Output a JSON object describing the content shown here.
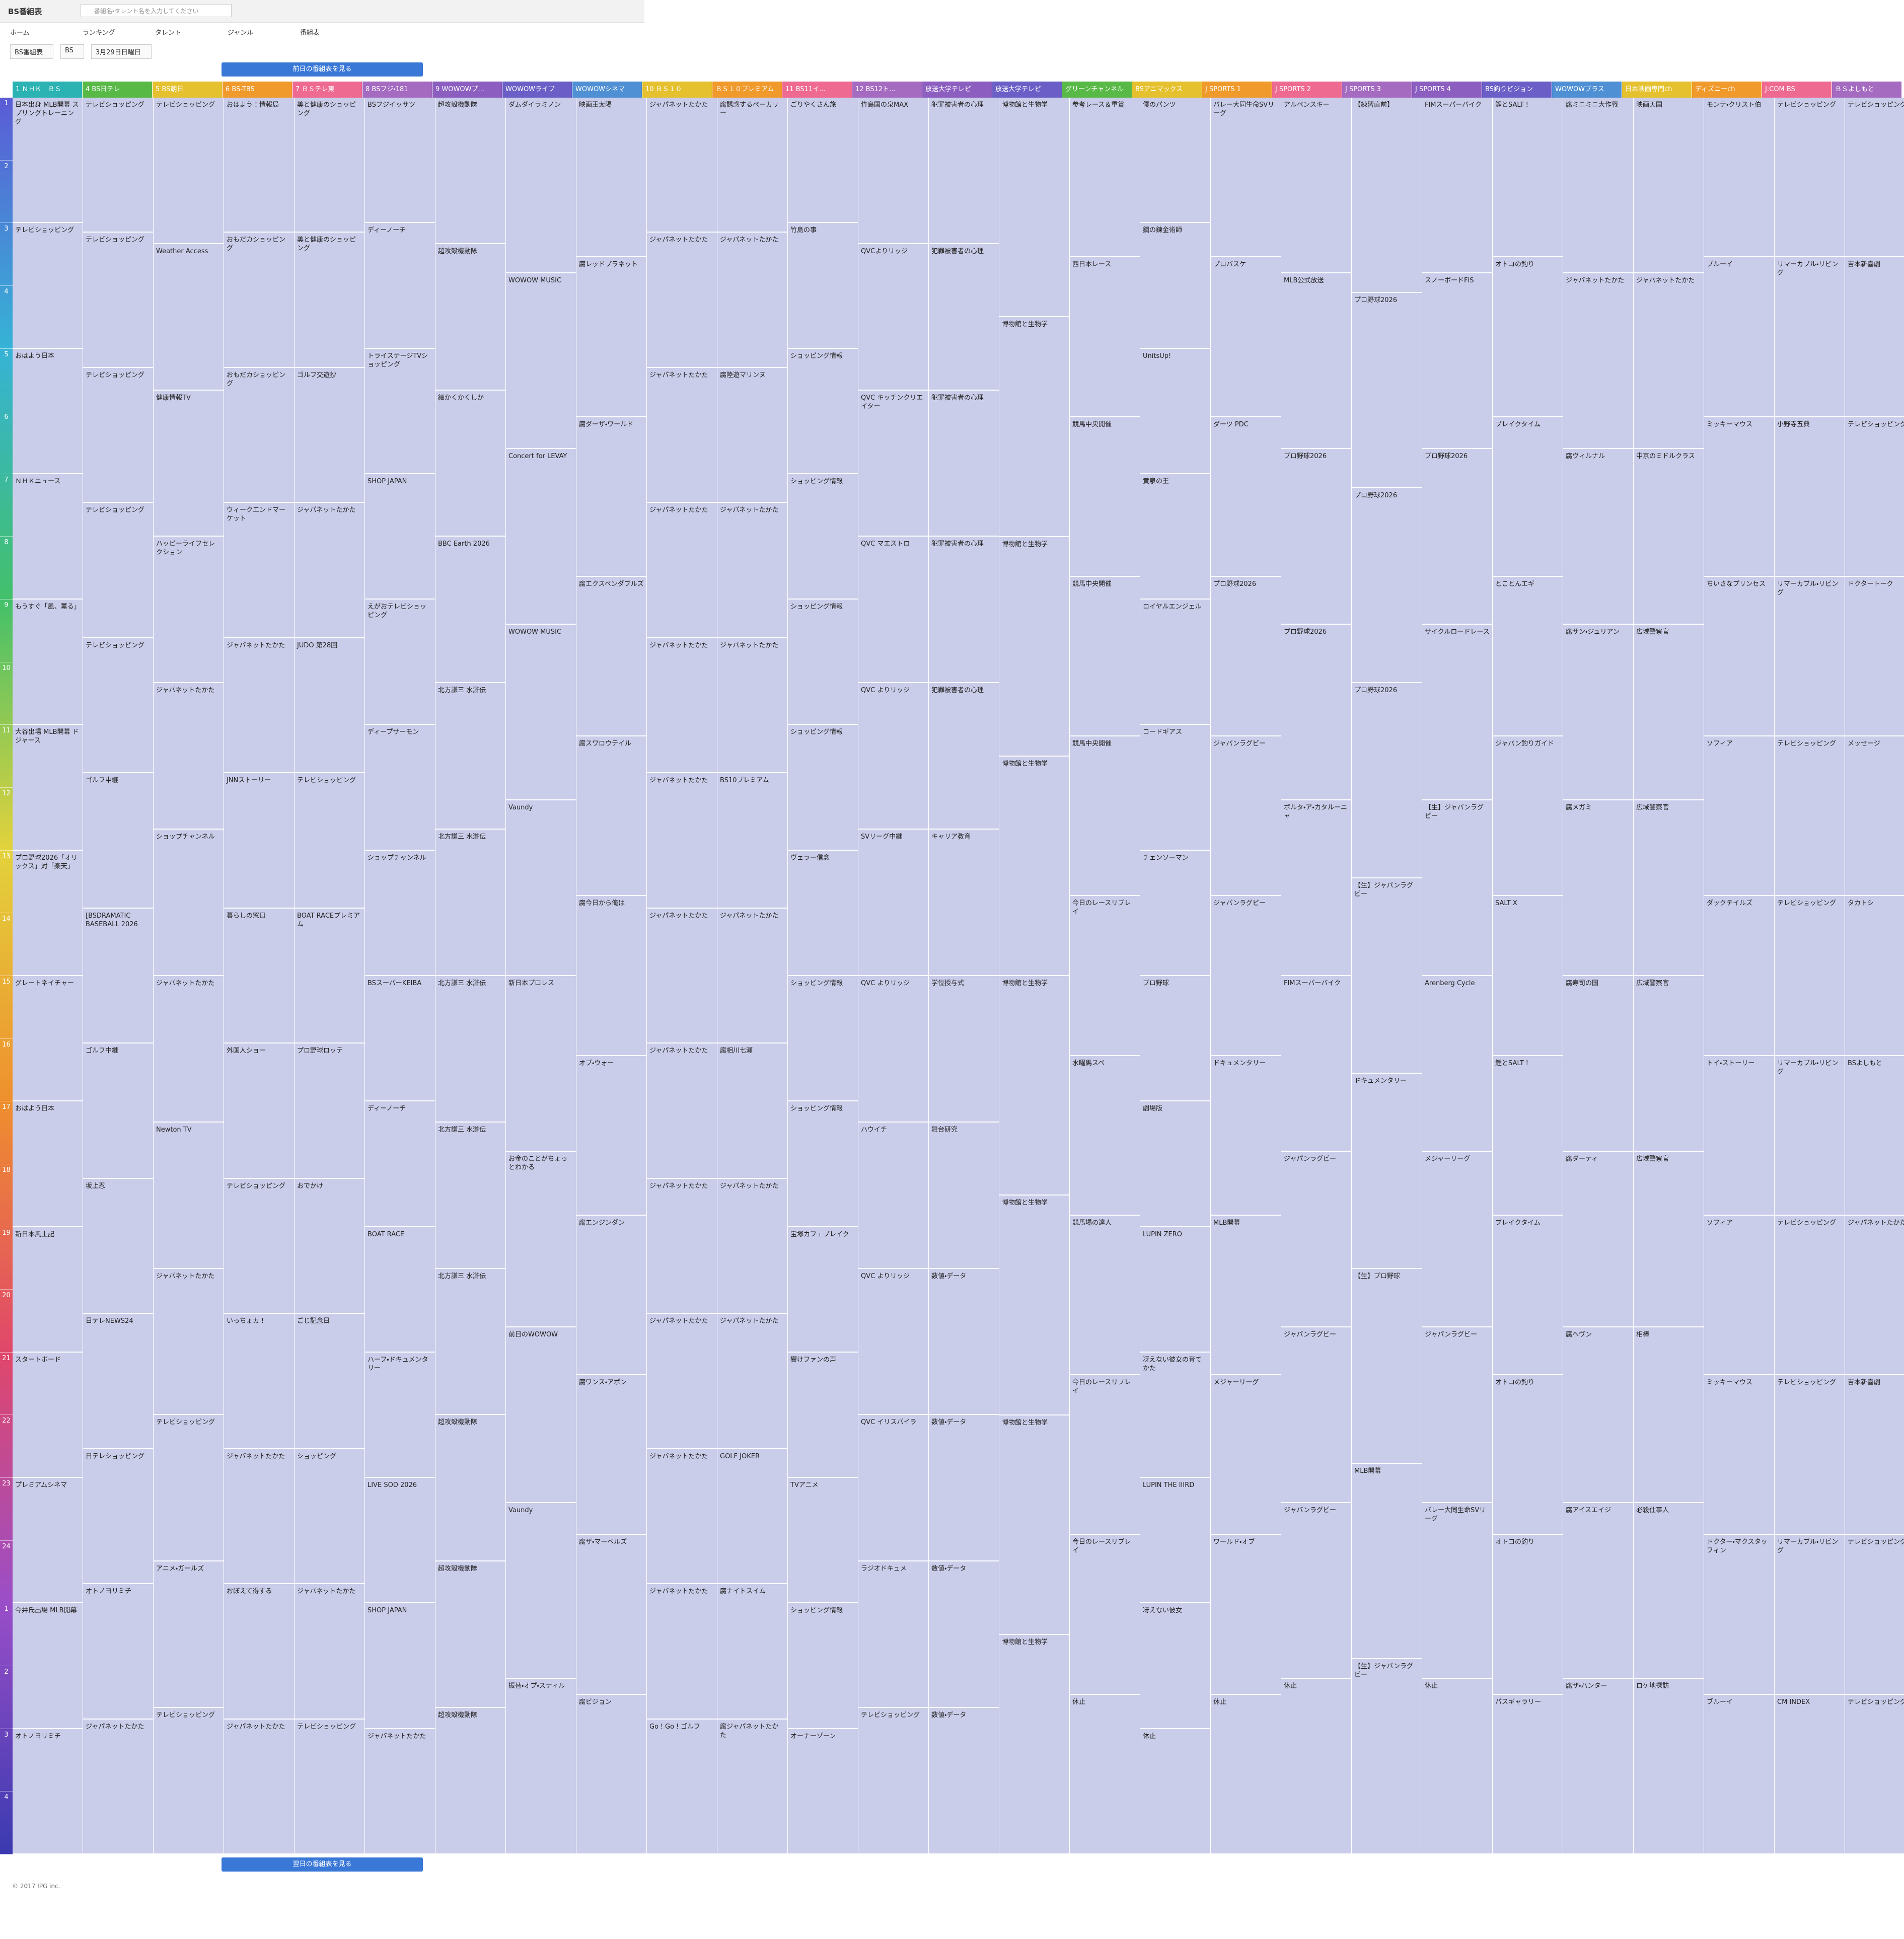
{
  "header": {
    "logo": "BS番組表",
    "search_placeholder": "番組名・タレント名を入力してください"
  },
  "nav": [
    "ホーム",
    "ランキング",
    "タレント",
    "ジャンル",
    "番組表"
  ],
  "filters": [
    "BS番組表",
    "BS",
    "3月29日日曜日"
  ],
  "prev_button": "前日の番組表を見る",
  "next_button": "翌日の番組表を見る",
  "footer": "© 2017 IPG inc.",
  "hours": [
    "1",
    "2",
    "3",
    "4",
    "5",
    "6",
    "7",
    "8",
    "9",
    "10",
    "11",
    "12",
    "13",
    "14",
    "15",
    "16",
    "17",
    "18",
    "19",
    "20",
    "21",
    "22",
    "23",
    "24",
    "1",
    "2",
    "3",
    "4"
  ],
  "channels": [
    {
      "name": "1 ＮＨＫ　ＢＳ",
      "color": "#2bb3b3",
      "programs": [
        "日本出身 MLB開幕 スプリングトレーニング",
        "テレビショッピング",
        "おはよう日本",
        "ＮＨＫニュース",
        "もうすぐ「風、薫る」",
        "大谷出場 MLB開幕 ドジャース",
        "プロ野球2026「オリックス」対「楽天」",
        "グレートネイチャー",
        "おはよう日本",
        "新日本風土記",
        "スタートボード",
        "プレミアムシネマ",
        "今井氏出場 MLB開幕",
        "オトノヨリミチ"
      ]
    },
    {
      "name": "4 BS日テレ",
      "color": "#58b947",
      "programs": [
        "テレビショッピング",
        "テレビショッピング",
        "テレビショッピング",
        "テレビショッピング",
        "テレビショッピング",
        "ゴルフ中継",
        "[BSDRAMATIC BASEBALL 2026",
        "ゴルフ中継",
        "坂上忍",
        "日テレNEWS24",
        "日テレショッピング",
        "オトノヨリミチ",
        "ジャパネットたかた"
      ]
    },
    {
      "name": "5 BS朝日",
      "color": "#e5c12f",
      "programs": [
        "テレビショッピング",
        "Weather Access",
        "健康情報TV",
        "ハッピーライフセレクション",
        "ジャパネットたかた",
        "ショップチャンネル",
        "ジャパネットたかた",
        "Newton TV",
        "ジャパネットたかた",
        "テレビショッピング",
        "アニメ・ガールズ",
        "テレビショッピング"
      ]
    },
    {
      "name": "6 BS-TBS",
      "color": "#f09a2c",
      "programs": [
        "おはよう！情報局",
        "おもだカショッピング",
        "おもだカショッピング",
        "ウィークエンドマーケット",
        "ジャパネットたかた",
        "JNNストーリー",
        "暮らしの窓口",
        "外国人ショー",
        "テレビショッピング",
        "いっちょカ！",
        "ジャパネットたかた",
        "おぼえて得する",
        "ジャパネットたかた"
      ]
    },
    {
      "name": "7 ＢＳテレ東",
      "color": "#ef6a91",
      "programs": [
        "美と健康のショッピング",
        "美と健康のショッピング",
        "ゴルフ交遊抄",
        "ジャパネットたかた",
        "JUDO 第28回",
        "テレビショッピング",
        "BOAT RACEプレミアム",
        "プロ野球ロッテ",
        "おでかけ",
        "ごじ記念日",
        "ショッピング",
        "ジャパネットたかた",
        "テレビショッピング"
      ]
    },
    {
      "name": "8 BSフジ・181",
      "color": "#a46bc1",
      "programs": [
        "BSフジイッサツ",
        "ディーノーチ",
        "トライステージTVショッピング",
        "SHOP JAPAN",
        "えがおテレビショッピング",
        "ディープサーモン",
        "ショップチャンネル",
        "BSスーパーKEIBA",
        "ディーノーチ",
        "BOAT RACE",
        "ハーフ・ドキュメンタリー",
        "LIVE SOD 2026",
        "SHOP JAPAN",
        "ジャパネットたかた"
      ]
    },
    {
      "name": "9 WOWOWプ...",
      "color": "#8b5ec0",
      "programs": [
        "超攻殻機動隊",
        "超攻殻機動隊",
        "細かくかくしか",
        "BBC Earth 2026",
        "北方謙三 水滸伝",
        "北方謙三 水滸伝",
        "北方謙三 水滸伝",
        "北方謙三 水滸伝",
        "北方謙三 水滸伝",
        "超攻殻機動隊",
        "超攻殻機動隊",
        "超攻殻機動隊"
      ]
    },
    {
      "name": "WOWOWライブ",
      "color": "#6b5fc7",
      "programs": [
        "ダムダイラミノン",
        "WOWOW MUSIC",
        "Concert for LEVAY",
        "WOWOW MUSIC",
        "Vaundy",
        "新日本プロレス",
        "お金のことがちょっとわかる",
        "前日のWOWOW",
        "Vaundy",
        "振替・オプ・スティル"
      ]
    },
    {
      "name": "WOWOWシネマ",
      "color": "#4f8fd4",
      "programs": [
        "映画王太陽",
        "腐レッドプラネット",
        "腐ダーザ・ワールド",
        "腐エクスペンダブルズ",
        "腐スワロウテイル",
        "腐今日から俺は",
        "オブ・ウォー",
        "腐エンジンダン",
        "腐ワンス・アポン",
        "腐ザ・マーベルズ",
        "腐ビジョン"
      ]
    },
    {
      "name": "10 ＢＳ１０",
      "color": "#e5c12f",
      "programs": [
        "ジャパネットたかた",
        "ジャパネットたかた",
        "ジャパネットたかた",
        "ジャパネットたかた",
        "ジャパネットたかた",
        "ジャパネットたかた",
        "ジャパネットたかた",
        "ジャパネットたかた",
        "ジャパネットたかた",
        "ジャパネットたかた",
        "ジャパネットたかた",
        "ジャパネットたかた",
        "Go！Go！ゴルフ"
      ]
    },
    {
      "name": "ＢＳ１０プレミアム",
      "color": "#f09a2c",
      "programs": [
        "腐誘惑するぺーカリー",
        "ジャパネットたかた",
        "腐陸遊マリンヌ",
        "ジャパネットたかた",
        "ジャパネットたかた",
        "BS10プレミアム",
        "ジャパネットたかた",
        "腐相川七瀬",
        "ジャパネットたかた",
        "ジャパネットたかた",
        "GOLF JOKER",
        "腐ナイトスイム",
        "腐ジャパネットたかた"
      ]
    },
    {
      "name": "11 BS11イ...",
      "color": "#ef6a91",
      "programs": [
        "ごりやくさん旅",
        "竹島の事",
        "ショッピング情報",
        "ショッピング情報",
        "ショッピング情報",
        "ショッピング情報",
        "ヴェラー信念",
        "ショッピング情報",
        "ショッピング情報",
        "宝塚カフェブレイク",
        "響けファンの声",
        "TVアニメ",
        "ショッピング情報",
        "オーナーゾーン"
      ]
    },
    {
      "name": "12 BS12ト...",
      "color": "#a46bc1",
      "programs": [
        "竹島国の泉MAX",
        "QVCよりリッジ",
        "QVC キッチンクリエイター",
        "QVC マエストロ",
        "QVC よりリッジ",
        "SVリーグ中継",
        "QVC よりリッジ",
        "ハウイチ",
        "QVC よりリッジ",
        "QVC イリスパイラ",
        "ラジオドキュメ",
        "テレビショッピング"
      ]
    },
    {
      "name": "放送大学テレビ",
      "color": "#8b5ec0",
      "programs": [
        "犯罪被害者の心理",
        "犯罪被害者の心理",
        "犯罪被害者の心理",
        "犯罪被害者の心理",
        "犯罪被害者の心理",
        "キャリア教育",
        "学位授与式",
        "舞台研究",
        "数値・データ",
        "数値・データ",
        "数値・データ",
        "数値・データ"
      ]
    },
    {
      "name": "放送大学テレビ",
      "color": "#6b5fc7",
      "programs": [
        "博物館と生物学",
        "博物館と生物学",
        "博物館と生物学",
        "博物館と生物学",
        "博物館と生物学",
        "博物館と生物学",
        "博物館と生物学",
        "博物館と生物学"
      ]
    },
    {
      "name": "グリーンチャンネル",
      "color": "#58b947",
      "programs": [
        "参考レース＆重賞",
        "西日本レース",
        "競馬中央開催",
        "競馬中央開催",
        "競馬中央開催",
        "今日のレースリプレイ",
        "水曜馬スペ",
        "競馬場の達人",
        "今日のレースリプレイ",
        "今日のレースリプレイ",
        "休止"
      ]
    },
    {
      "name": "BSアニマックス",
      "color": "#e5c12f",
      "programs": [
        "僕のパンツ",
        "鋼の錬金術師",
        "UnitsUp!",
        "黄泉の王",
        "ロイヤルエンジェル",
        "コードギアス",
        "チェンソーマン",
        "プロ野球",
        "劇場版",
        "LUPIN ZERO",
        "冴えない彼女の育てかた",
        "LUPIN THE IIIRD",
        "冴えない彼女",
        "休止"
      ]
    },
    {
      "name": "J SPORTS 1",
      "color": "#f09a2c",
      "programs": [
        "バレー大同生命SVリーグ",
        "プロバスケ",
        "ダーツ PDC",
        "プロ野球2026",
        "ジャパンラグビー",
        "ジャパンラグビー",
        "ドキュメンタリー",
        "MLB開幕",
        "メジャーリーグ",
        "ワールド・オブ",
        "休止"
      ]
    },
    {
      "name": "J SPORTS 2",
      "color": "#ef6a91",
      "programs": [
        "アルペンスキー",
        "MLB公式放送",
        "プロ野球2026",
        "プロ野球2026",
        "ボルタ・ア・カタルーニャ",
        "FIMスーパーバイク",
        "ジャパンラグビー",
        "ジャパンラグビー",
        "ジャパンラグビー",
        "休止"
      ]
    },
    {
      "name": "J SPORTS 3",
      "color": "#a46bc1",
      "programs": [
        "【練習直前】",
        "プロ野球2026",
        "プロ野球2026",
        "プロ野球2026",
        "【生】ジャパンラグビー",
        "ドキュメンタリー",
        "【生】プロ野球",
        "MLB開幕",
        "【生】ジャパンラグビー"
      ]
    },
    {
      "name": "J SPORTS 4",
      "color": "#8b5ec0",
      "programs": [
        "FIMスーパーバイク",
        "スノーボードFIS",
        "プロ野球2026",
        "サイクルロードレース",
        "【生】ジャパンラグビー",
        "Arenberg Cycle",
        "メジャーリーグ",
        "ジャパンラグビー",
        "バレー大同生命SVリーグ",
        "休止"
      ]
    },
    {
      "name": "BS釣りビジョン",
      "color": "#6b5fc7",
      "programs": [
        "鯉とSALT！",
        "オトコの釣り",
        "ブレイクタイム",
        "とことんエギ",
        "ジャパン釣りガイド",
        "SALT X",
        "鯉とSALT！",
        "ブレイクタイム",
        "オトコの釣り",
        "オトコの釣り",
        "パスギャラリー"
      ]
    },
    {
      "name": "WOWOWプラス",
      "color": "#4f8fd4",
      "programs": [
        "腐ミニミニ大作戦",
        "ジャパネットたかた",
        "腐ヴィルナル",
        "腐サン・ジュリアン",
        "腐メガミ",
        "腐寿司の国",
        "腐ダーティ",
        "腐ヘヴン",
        "腐アイスエイジ",
        "腐ザ・ハンター"
      ]
    },
    {
      "name": "日本映画専門ch",
      "color": "#e5c12f",
      "programs": [
        "映画天国",
        "ジャパネットたかた",
        "中京のミドルクラス",
        "広域警察官",
        "広域警察官",
        "広域警察官",
        "広域警察官",
        "相棒",
        "必殺仕事人",
        "ロケ地探訪"
      ]
    },
    {
      "name": "ディズニーch",
      "color": "#f09a2c",
      "programs": [
        "モンテ・クリスト伯",
        "ブルーイ",
        "ミッキーマウス",
        "ちいさなプリンセス",
        "ソフィア",
        "ダックテイルズ",
        "トイ・ストーリー",
        "ソフィア",
        "ミッキーマウス",
        "ドクター・マクスタッフィン",
        "ブルーイ"
      ]
    },
    {
      "name": "J:COM BS",
      "color": "#ef6a91",
      "programs": [
        "テレビショッピング",
        "リマーカブル・リビング",
        "小野寺五典",
        "リマーカブル・リビング",
        "テレビショッピング",
        "テレビショッピング",
        "リマーカブル・リビング",
        "テレビショッピング",
        "テレビショッピング",
        "リマーカブル・リビング",
        "CM INDEX"
      ]
    },
    {
      "name": "ＢＳよしもと",
      "color": "#a46bc1",
      "programs": [
        "テレビショッピング",
        "吉本新喜劇",
        "テレビショッピング",
        "ドクタートーク",
        "メッセージ",
        "タカトシ",
        "BSよしもと",
        "ジャパネットたかた",
        "吉本新喜劇",
        "テレビショッピング",
        "テレビショッピング"
      ]
    }
  ]
}
